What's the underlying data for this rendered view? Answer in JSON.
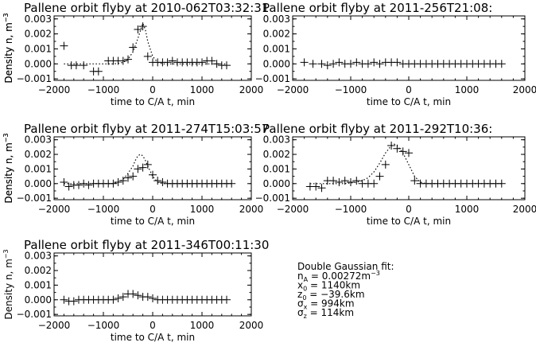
{
  "chart_data": [
    {
      "type": "scatter",
      "title": "Pallene orbit flyby at 2010-062T03:32:31",
      "xlabel": "time to C/A t, min",
      "ylabel": "Density n, m",
      "ylabel_exp": "-3",
      "xlim": [
        -2000,
        2000
      ],
      "ylim": [
        -0.0011,
        0.0032
      ],
      "xticks": [
        "-2000",
        "-1000",
        "0",
        "1000",
        "2000"
      ],
      "yticks": [
        "0.003",
        "0.002",
        "0.001",
        "0.000",
        "-0.001"
      ],
      "series": [
        {
          "kind": "data",
          "x": [
            -1800,
            -1650,
            -1550,
            -1400,
            -1200,
            -1100,
            -900,
            -800,
            -700,
            -600,
            -500,
            -400,
            -300,
            -200,
            -100,
            0,
            100,
            200,
            300,
            400,
            500,
            600,
            700,
            800,
            900,
            1000,
            1100,
            1200,
            1300,
            1400,
            1500
          ],
          "y": [
            0.0012,
            -0.0001,
            -0.0001,
            -0.0001,
            -0.0005,
            -0.0005,
            0.0002,
            0.0002,
            0.0002,
            0.0002,
            0.0003,
            0.0011,
            0.0023,
            0.0025,
            0.0005,
            0.0001,
            0.0001,
            0.0001,
            0.0001,
            0.0002,
            0.0001,
            0.0001,
            0.0001,
            0.0001,
            0.0001,
            0.0001,
            0.0002,
            0.0002,
            0.0,
            -0.0001,
            -0.0001
          ]
        },
        {
          "kind": "fit",
          "x": [
            -1800,
            -1600,
            -1400,
            -1200,
            -1000,
            -800,
            -700,
            -600,
            -500,
            -400,
            -300,
            -250,
            -200,
            -150,
            -100,
            0,
            100,
            200,
            300,
            400,
            500,
            600,
            700,
            800,
            900,
            1000,
            1100,
            1200,
            1300,
            1400,
            1500
          ],
          "y": [
            0.0,
            0.0,
            0.0,
            0.0,
            0.0,
            0.0,
            3e-05,
            0.0001,
            0.0003,
            0.0008,
            0.0017,
            0.0022,
            0.0027,
            0.0023,
            0.0015,
            0.0005,
            0.0001,
            0.0,
            0.0,
            0.0,
            0.0,
            0.0,
            0.0,
            0.0,
            0.0,
            0.0,
            0.0,
            0.0,
            0.0,
            0.0,
            0.0
          ]
        }
      ]
    },
    {
      "type": "scatter",
      "title": "Pallene orbit flyby at 2011-256T21:08:",
      "xlabel": "time to C/A t, min",
      "ylabel": "Density n, m",
      "ylabel_exp": "-3",
      "xlim": [
        -2000,
        2000
      ],
      "ylim": [
        -0.0011,
        0.0032
      ],
      "xticks": [
        "-2000",
        "-1000",
        "0",
        "1000",
        "2000"
      ],
      "yticks": [
        "0.003",
        "0.002",
        "0.001",
        "0.000",
        "-0.001"
      ],
      "series": [
        {
          "kind": "data",
          "x": [
            -1800,
            -1650,
            -1500,
            -1400,
            -1300,
            -1200,
            -1100,
            -1000,
            -900,
            -800,
            -700,
            -600,
            -500,
            -400,
            -300,
            -200,
            -100,
            0,
            100,
            200,
            300,
            400,
            500,
            600,
            700,
            800,
            900,
            1000,
            1100,
            1200,
            1300,
            1400,
            1500,
            1600
          ],
          "y": [
            0.0001,
            0.0,
            0.0,
            -0.0001,
            0.0,
            0.0001,
            0.0,
            0.0,
            0.0001,
            0.0,
            0.0,
            0.0001,
            0.0,
            0.0001,
            0.0001,
            0.0001,
            0.0,
            0.0,
            0.0,
            0.0,
            0.0,
            0.0,
            0.0,
            0.0,
            0.0,
            0.0,
            0.0,
            0.0,
            0.0,
            0.0,
            0.0,
            0.0,
            0.0,
            0.0
          ]
        }
      ]
    },
    {
      "type": "scatter",
      "title": "Pallene orbit flyby at 2011-274T15:03:57",
      "xlabel": "time to C/A t, min",
      "ylabel": "Density n, m",
      "ylabel_exp": "-3",
      "xlim": [
        -2000,
        2000
      ],
      "ylim": [
        -0.0011,
        0.0032
      ],
      "xticks": [
        "-2000",
        "-1000",
        "0",
        "1000",
        "2000"
      ],
      "yticks": [
        "0.003",
        "0.002",
        "0.001",
        "0.000",
        "-0.001"
      ],
      "series": [
        {
          "kind": "data",
          "x": [
            -1800,
            -1700,
            -1600,
            -1500,
            -1400,
            -1300,
            -1200,
            -1100,
            -1000,
            -900,
            -800,
            -700,
            -600,
            -500,
            -400,
            -300,
            -200,
            -100,
            0,
            100,
            200,
            300,
            400,
            500,
            600,
            700,
            800,
            900,
            1000,
            1100,
            1200,
            1300,
            1400,
            1500,
            1600
          ],
          "y": [
            0.0001,
            -0.0002,
            -0.0001,
            -0.0001,
            0.0,
            -0.0001,
            0.0,
            0.0,
            0.0,
            0.0,
            0.0,
            0.0001,
            0.0002,
            0.0004,
            0.0005,
            0.001,
            0.0011,
            0.0013,
            0.0006,
            0.0002,
            0.0001,
            0.0,
            0.0,
            0.0,
            0.0,
            0.0,
            0.0,
            0.0,
            0.0,
            0.0,
            0.0,
            0.0,
            0.0,
            0.0,
            0.0
          ]
        },
        {
          "kind": "fit",
          "x": [
            -1800,
            -1600,
            -1400,
            -1200,
            -1000,
            -800,
            -700,
            -600,
            -500,
            -400,
            -350,
            -300,
            -250,
            -200,
            -150,
            -100,
            0,
            100,
            200,
            300,
            400,
            600,
            800,
            1000,
            1200,
            1400,
            1600
          ],
          "y": [
            0.0,
            0.0,
            0.0,
            0.0,
            0.0,
            0.0,
            0.0001,
            0.0003,
            0.0007,
            0.0012,
            0.0016,
            0.0019,
            0.002,
            0.0019,
            0.0016,
            0.0012,
            0.0005,
            0.0001,
            0.0,
            0.0,
            0.0,
            0.0,
            0.0,
            0.0,
            0.0,
            0.0,
            0.0
          ]
        }
      ]
    },
    {
      "type": "scatter",
      "title": "Pallene orbit flyby at 2011-292T10:36:",
      "xlabel": "time to C/A t, min",
      "ylabel": "Density n, m",
      "ylabel_exp": "-3",
      "xlim": [
        -2000,
        2000
      ],
      "ylim": [
        -0.0011,
        0.0032
      ],
      "xticks": [
        "-2000",
        "-1000",
        "0",
        "1000",
        "2000"
      ],
      "yticks": [
        "0.003",
        "0.002",
        "0.001",
        "0.000",
        "-0.001"
      ],
      "series": [
        {
          "kind": "data",
          "x": [
            -1700,
            -1600,
            -1500,
            -1400,
            -1300,
            -1200,
            -1100,
            -1000,
            -900,
            -800,
            -700,
            -600,
            -500,
            -400,
            -300,
            -200,
            -100,
            0,
            100,
            200,
            300,
            400,
            500,
            600,
            700,
            800,
            900,
            1000,
            1100,
            1200,
            1300,
            1400,
            1500,
            1600
          ],
          "y": [
            -0.0002,
            -0.0002,
            -0.0003,
            0.0002,
            0.0002,
            0.0001,
            0.0002,
            0.0001,
            0.0002,
            0.0,
            0.0,
            0.0,
            0.0005,
            0.0013,
            0.0026,
            0.0024,
            0.0022,
            0.0021,
            0.0002,
            0.0,
            0.0,
            0.0,
            0.0,
            0.0,
            0.0,
            0.0,
            0.0,
            0.0,
            0.0,
            0.0,
            0.0,
            0.0,
            0.0,
            0.0
          ]
        },
        {
          "kind": "fit",
          "x": [
            -1700,
            -1500,
            -1300,
            -1100,
            -900,
            -800,
            -700,
            -600,
            -500,
            -400,
            -300,
            -250,
            -200,
            -100,
            0,
            100,
            200,
            300,
            400,
            600,
            800,
            1000,
            1200,
            1400,
            1600
          ],
          "y": [
            0.0,
            0.0,
            0.0,
            0.0,
            0.0001,
            0.0002,
            0.0004,
            0.0008,
            0.0014,
            0.0021,
            0.0026,
            0.0027,
            0.0026,
            0.0021,
            0.0013,
            0.0005,
            0.0001,
            0.0,
            0.0,
            0.0,
            0.0,
            0.0,
            0.0,
            0.0,
            0.0
          ]
        }
      ]
    },
    {
      "type": "scatter",
      "title": "Pallene orbit flyby at 2011-346T00:11:30",
      "xlabel": "time to C/A t, min",
      "ylabel": "Density n, m",
      "ylabel_exp": "-3",
      "xlim": [
        -2000,
        2000
      ],
      "ylim": [
        -0.0011,
        0.0032
      ],
      "xticks": [
        "-2000",
        "-1000",
        "0",
        "1000",
        "2000"
      ],
      "yticks": [
        "0.003",
        "0.002",
        "0.001",
        "0.000",
        "-0.001"
      ],
      "series": [
        {
          "kind": "data",
          "x": [
            -1800,
            -1700,
            -1600,
            -1500,
            -1400,
            -1300,
            -1200,
            -1100,
            -1000,
            -900,
            -800,
            -700,
            -600,
            -500,
            -400,
            -300,
            -200,
            -100,
            0,
            100,
            200,
            300,
            400,
            500,
            600,
            700,
            800,
            900,
            1000,
            1100,
            1200,
            1300,
            1400,
            1500
          ],
          "y": [
            0.0,
            -0.0001,
            -0.0001,
            0.0,
            0.0,
            0.0,
            0.0,
            0.0,
            0.0,
            0.0,
            0.0,
            0.0001,
            0.0002,
            0.0004,
            0.0004,
            0.0003,
            0.0002,
            0.0002,
            0.0001,
            0.0,
            0.0,
            0.0,
            0.0,
            0.0,
            0.0,
            0.0,
            0.0,
            0.0,
            0.0,
            0.0,
            0.0,
            0.0,
            0.0,
            0.0
          ]
        }
      ]
    }
  ],
  "fit_info": {
    "heading": "Double Gaussian fit:",
    "lines": [
      {
        "sym": "n",
        "sub": "A",
        "text": " = 0.00272m",
        "sup": "-3"
      },
      {
        "sym": "x",
        "sub": "0",
        "text": " = 1140km",
        "sup": ""
      },
      {
        "sym": "z",
        "sub": "0",
        "text": " = -39.6km",
        "sup": ""
      },
      {
        "sym": "σ",
        "sub": "x",
        "text": " = 994km",
        "sup": ""
      },
      {
        "sym": "σ",
        "sub": "z",
        "text": " = 114km",
        "sup": ""
      }
    ]
  }
}
